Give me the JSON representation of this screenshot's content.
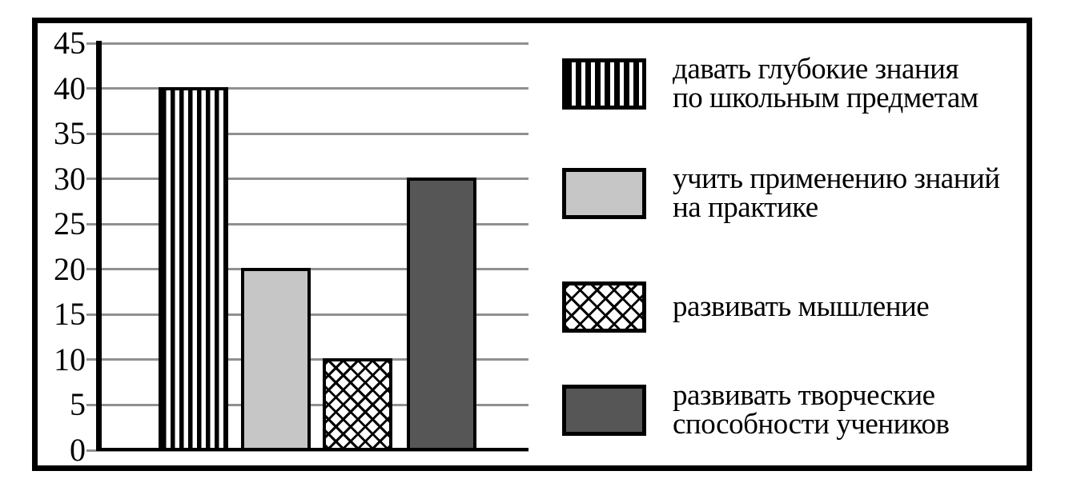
{
  "chart_data": {
    "type": "bar",
    "title": "",
    "categories": [
      "давать глубокие знания по школьным предметам",
      "учить применению знаний на практике",
      "развивать мышление",
      "развивать творческие способности учеников"
    ],
    "values": [
      40,
      20,
      10,
      30
    ],
    "xlabel": "",
    "ylabel": "",
    "ylim": [
      0,
      45
    ],
    "yticks": [
      0,
      5,
      10,
      15,
      20,
      25,
      30,
      35,
      40,
      45
    ],
    "grid": true,
    "legend_position": "right",
    "bar_patterns": [
      "vertical-stripes",
      "solid-light-gray",
      "diagonal-crosshatch",
      "solid-dark-gray"
    ]
  },
  "legend": {
    "items": [
      {
        "pattern": "vertical-stripes",
        "lines": [
          "давать глубокие знания",
          "по школьным предметам"
        ]
      },
      {
        "pattern": "solid-light-gray",
        "lines": [
          "учить применению знаний",
          "на практике"
        ]
      },
      {
        "pattern": "diagonal-crosshatch",
        "lines": [
          "развивать мышление"
        ]
      },
      {
        "pattern": "solid-dark-gray",
        "lines": [
          "развивать творческие",
          "способности учеников"
        ]
      }
    ]
  },
  "colors": {
    "light_gray_fill": "#c6c6c6",
    "dark_gray_fill": "#565656",
    "gridline": "#909090",
    "frame": "#000000",
    "background": "#ffffff"
  }
}
